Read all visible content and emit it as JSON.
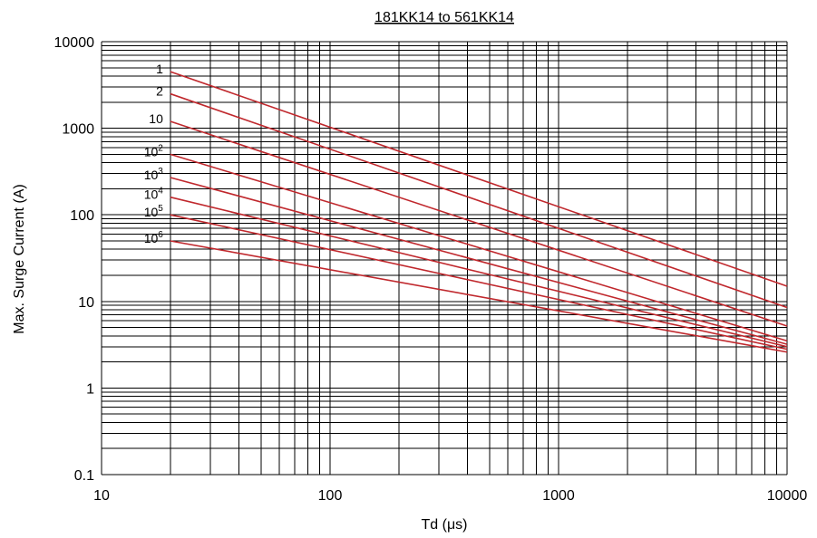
{
  "chart_data": {
    "type": "line",
    "title": "181KK14 to 561KK14",
    "xlabel": "Td (μs)",
    "ylabel": "Max. Surge Current (A)",
    "x_scale": "log",
    "y_scale": "log",
    "xlim": [
      10,
      10000
    ],
    "ylim": [
      0.1,
      10000
    ],
    "x_ticks": [
      10,
      100,
      1000,
      10000
    ],
    "x_tick_labels": [
      "10",
      "100",
      "1000",
      "10000"
    ],
    "y_ticks": [
      0.1,
      1,
      10,
      100,
      1000,
      10000
    ],
    "y_tick_labels": [
      "0.1",
      "1",
      "10",
      "100",
      "1000",
      "10000"
    ],
    "grid": true,
    "line_color": "#c0282d",
    "series": [
      {
        "label_base": "1",
        "label_exp": "",
        "x": [
          20,
          10000
        ],
        "y": [
          4500,
          15
        ]
      },
      {
        "label_base": "2",
        "label_exp": "",
        "x": [
          20,
          10000
        ],
        "y": [
          2500,
          8.5
        ]
      },
      {
        "label_base": "10",
        "label_exp": "",
        "x": [
          20,
          10000
        ],
        "y": [
          1200,
          5.2
        ]
      },
      {
        "label_base": "10",
        "label_exp": "2",
        "x": [
          20,
          10000
        ],
        "y": [
          500,
          3.5
        ]
      },
      {
        "label_base": "10",
        "label_exp": "3",
        "x": [
          20,
          10000
        ],
        "y": [
          270,
          3.2
        ]
      },
      {
        "label_base": "10",
        "label_exp": "4",
        "x": [
          20,
          10000
        ],
        "y": [
          160,
          3
        ]
      },
      {
        "label_base": "10",
        "label_exp": "5",
        "x": [
          20,
          10000
        ],
        "y": [
          100,
          2.8
        ]
      },
      {
        "label_base": "10",
        "label_exp": "6",
        "x": [
          20,
          10000
        ],
        "y": [
          50,
          2.6
        ]
      }
    ]
  }
}
